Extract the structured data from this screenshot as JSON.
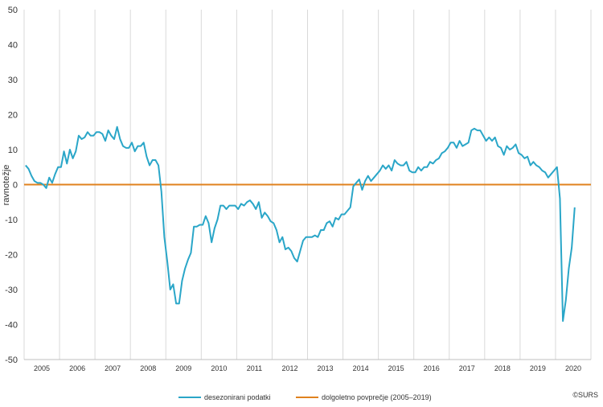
{
  "chart_data": {
    "type": "line",
    "ylabel": "ravnotežje",
    "ylim": [
      -50,
      50
    ],
    "yticks": [
      -50,
      -40,
      -30,
      -20,
      -10,
      0,
      10,
      20,
      30,
      40,
      50
    ],
    "xlim": [
      2005,
      2021
    ],
    "year_labels": [
      "2005",
      "2006",
      "2007",
      "2008",
      "2009",
      "2010",
      "2011",
      "2012",
      "2013",
      "2014",
      "2015",
      "2016",
      "2017",
      "2018",
      "2019",
      "2020"
    ],
    "grid": "vertical lines between years",
    "legend_position": "bottom",
    "series": [
      {
        "name": "desezonirani podatki",
        "color": "#2aa6c8",
        "frequency": "monthly, starting 2005-01",
        "values": [
          5.5,
          4.5,
          2.5,
          1.0,
          0.5,
          0.5,
          0.0,
          -1.0,
          2.0,
          0.5,
          3.0,
          5.0,
          5.0,
          9.5,
          6.0,
          10.0,
          7.5,
          9.5,
          14.0,
          13.0,
          13.5,
          15.0,
          14.0,
          14.0,
          15.0,
          15.0,
          14.5,
          12.5,
          15.5,
          14.0,
          13.0,
          16.5,
          13.0,
          11.0,
          10.5,
          10.5,
          12.0,
          9.5,
          11.0,
          11.0,
          12.0,
          8.0,
          5.5,
          7.0,
          7.0,
          5.5,
          -2.0,
          -15.0,
          -22.0,
          -30.0,
          -28.5,
          -34.0,
          -34.0,
          -27.5,
          -24.0,
          -21.5,
          -19.5,
          -12.0,
          -12.0,
          -11.5,
          -11.5,
          -9.0,
          -11.0,
          -16.5,
          -12.5,
          -10.0,
          -6.0,
          -6.0,
          -7.0,
          -6.0,
          -6.0,
          -6.0,
          -7.0,
          -5.5,
          -6.0,
          -5.0,
          -4.5,
          -5.5,
          -7.0,
          -5.0,
          -9.5,
          -8.0,
          -9.0,
          -10.5,
          -11.0,
          -13.0,
          -16.5,
          -15.0,
          -18.5,
          -18.0,
          -19.0,
          -21.0,
          -22.0,
          -19.0,
          -16.0,
          -15.0,
          -15.0,
          -15.0,
          -14.5,
          -15.0,
          -13.0,
          -13.0,
          -11.0,
          -10.5,
          -12.0,
          -9.5,
          -10.0,
          -8.5,
          -8.5,
          -7.5,
          -6.5,
          -0.5,
          0.5,
          1.5,
          -1.5,
          1.0,
          2.5,
          1.0,
          2.0,
          3.0,
          4.0,
          5.5,
          4.5,
          5.5,
          4.0,
          7.0,
          6.0,
          5.5,
          5.5,
          6.5,
          4.0,
          3.5,
          3.5,
          5.0,
          4.0,
          5.0,
          5.0,
          6.5,
          6.0,
          7.0,
          7.5,
          9.0,
          9.5,
          10.5,
          12.0,
          12.0,
          10.5,
          12.5,
          11.0,
          11.5,
          12.0,
          15.5,
          16.0,
          15.5,
          15.5,
          14.0,
          12.5,
          13.5,
          12.5,
          13.5,
          11.0,
          10.5,
          8.5,
          11.0,
          10.0,
          10.5,
          11.5,
          9.0,
          8.5,
          7.5,
          8.0,
          5.5,
          6.5,
          5.5,
          5.0,
          4.0,
          3.5,
          2.0,
          3.0,
          4.0,
          5.0,
          -4.0,
          -39.0,
          -33.0,
          -24.0,
          -18.0,
          -6.5
        ]
      },
      {
        "name": "dolgoletno povprečje (2005–2019)",
        "color": "#e0821e",
        "values": [
          0,
          0
        ]
      }
    ]
  },
  "credit": "©SURS"
}
